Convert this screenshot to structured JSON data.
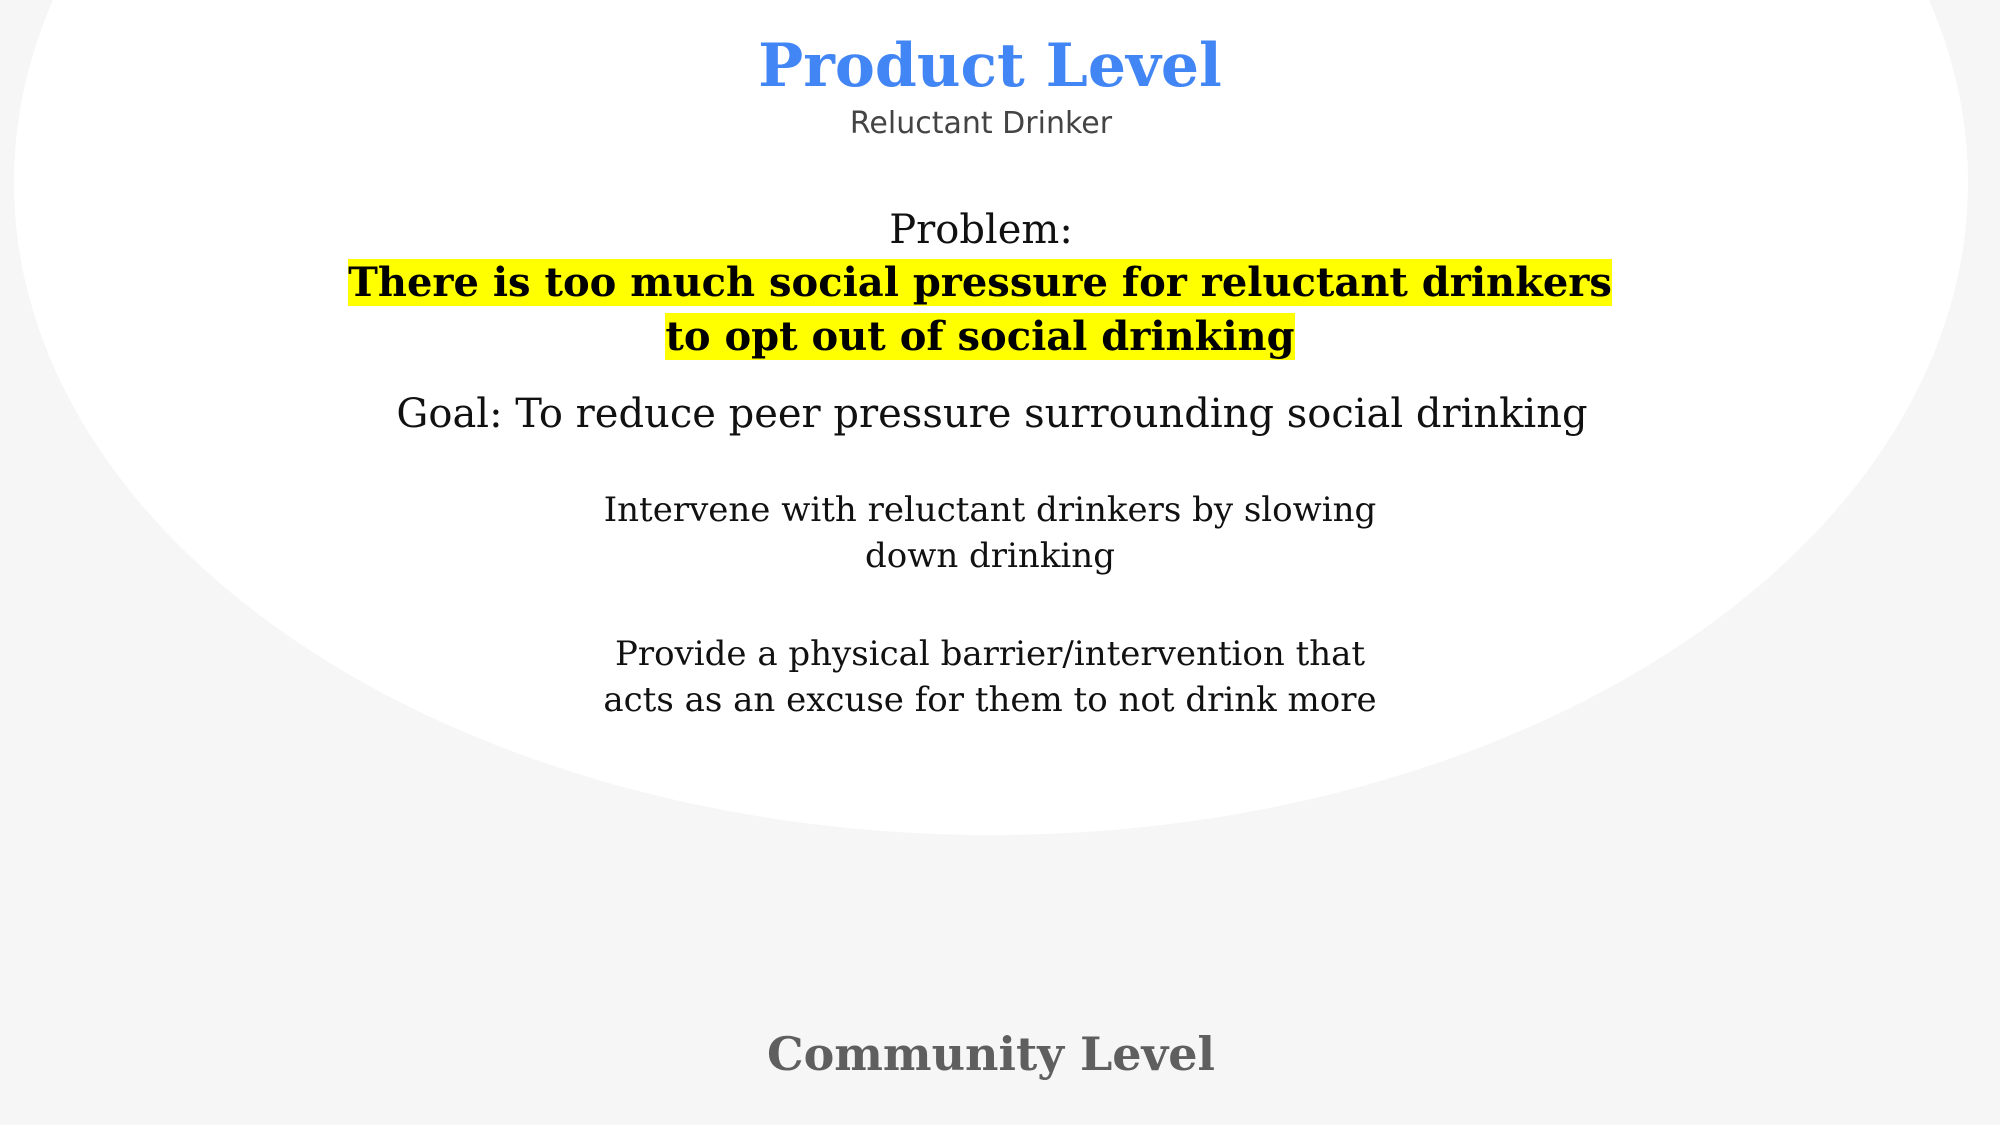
{
  "slide": {
    "title": "Product Level",
    "subtitle": "Reluctant Drinker",
    "problem_label": "Problem:",
    "problem_text": "There is too much social pressure for reluctant drinkers to opt out of social drinking",
    "goal": "Goal: To reduce peer pressure surrounding social drinking",
    "points": [
      "Intervene with reluctant drinkers by slowing down drinking",
      "Provide a physical barrier/intervention that acts as an excuse for them to not drink more"
    ],
    "next_level": "Community Level"
  },
  "colors": {
    "title": "#4285f4",
    "highlight": "#ffff00",
    "background": "#f6f6f6",
    "oval": "#ffffff",
    "next_level": "#5f5f5f"
  }
}
